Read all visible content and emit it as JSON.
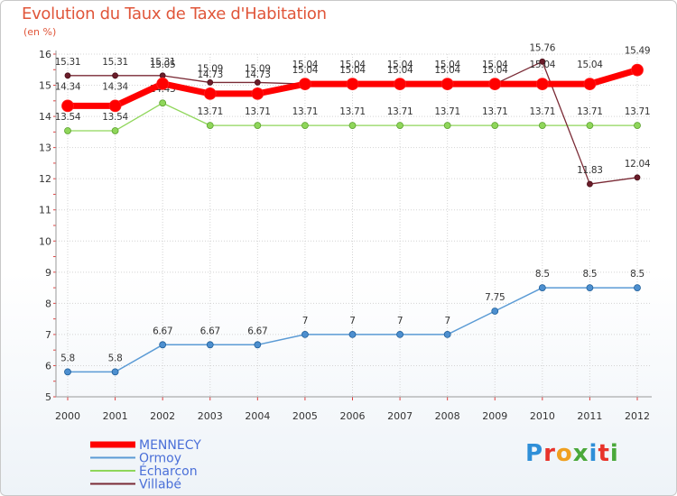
{
  "title": "Evolution du Taux de Taxe d'Habitation",
  "subtitle": "(en %)",
  "logo_text": "Proxiti",
  "chart_data": {
    "type": "line",
    "title": "Evolution du Taux de Taxe d'Habitation",
    "ylabel": "(en %)",
    "x": [
      2000,
      2001,
      2002,
      2003,
      2004,
      2005,
      2006,
      2007,
      2008,
      2009,
      2010,
      2011,
      2012
    ],
    "ylim": [
      5,
      16
    ],
    "yticks": [
      5,
      6,
      7,
      8,
      9,
      10,
      11,
      12,
      13,
      14,
      15,
      16
    ],
    "grid": true,
    "legend": "bottom-left",
    "series": [
      {
        "name": "MENNECY",
        "color": "#ff0000",
        "values": [
          14.34,
          14.34,
          15.05,
          14.73,
          14.73,
          15.04,
          15.04,
          15.04,
          15.04,
          15.04,
          15.04,
          15.04,
          15.49
        ],
        "labels": [
          "14.34",
          "14.34",
          "15.05",
          "14.73",
          "14.73",
          "15.04",
          "15.04",
          "15.04",
          "15.04",
          "15.04",
          "15.04",
          "15.04",
          "15.49"
        ]
      },
      {
        "name": "Ormoy",
        "color": "#5b9bd5",
        "values": [
          5.8,
          5.8,
          6.67,
          6.67,
          6.67,
          7,
          7,
          7,
          7,
          7.75,
          8.5,
          8.5,
          8.5
        ],
        "labels": [
          "5.8",
          "5.8",
          "6.67",
          "6.67",
          "6.67",
          "7",
          "7",
          "7",
          "7",
          "7.75",
          "8.5",
          "8.5",
          "8.5"
        ]
      },
      {
        "name": "Écharcon",
        "color": "#8fd65a",
        "values": [
          13.54,
          13.54,
          14.43,
          13.71,
          13.71,
          13.71,
          13.71,
          13.71,
          13.71,
          13.71,
          13.71,
          13.71,
          13.71
        ],
        "labels": [
          "13.54",
          "13.54",
          "14.43",
          "13.71",
          "13.71",
          "13.71",
          "13.71",
          "13.71",
          "13.71",
          "13.71",
          "13.71",
          "13.71",
          "13.71"
        ]
      },
      {
        "name": "Villabé",
        "color": "#7a2a35",
        "values": [
          15.31,
          15.31,
          15.31,
          15.09,
          15.09,
          15.04,
          15.04,
          15.04,
          15.04,
          15.04,
          15.76,
          11.83,
          12.04
        ],
        "labels": [
          "15.31",
          "15.31",
          "15.31",
          "15.09",
          "15.09",
          "15.04",
          "15.04",
          "15.04",
          "15.04",
          "15.04",
          "15.76",
          "11.83",
          "12.04"
        ]
      }
    ]
  }
}
